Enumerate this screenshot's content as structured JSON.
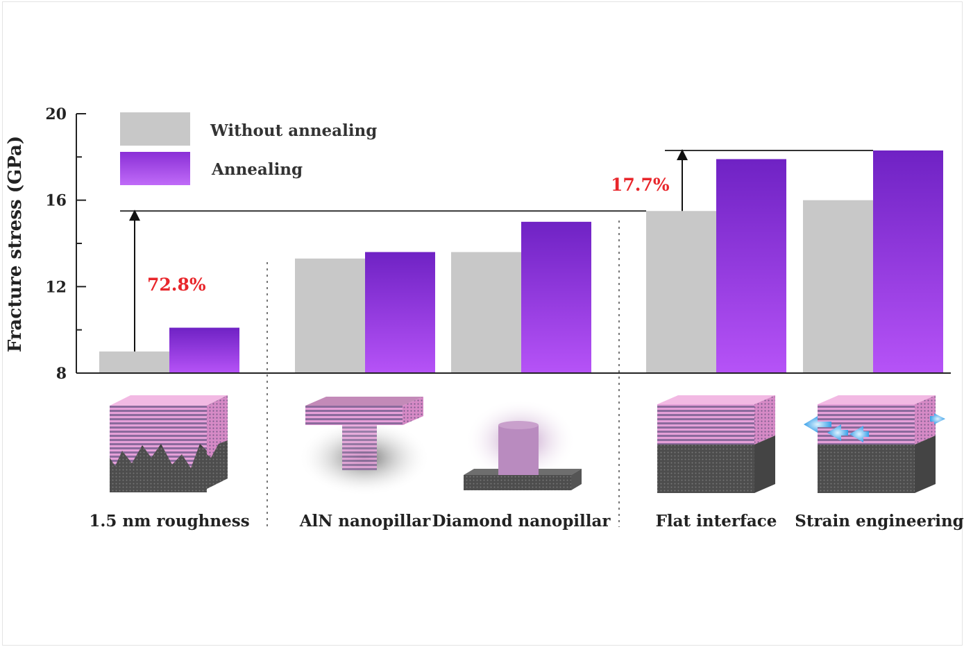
{
  "chart_data": {
    "type": "bar",
    "categories": [
      "1.5 nm roughness",
      "AlN nanopillar",
      "Diamond nanopillar",
      "Flat interface",
      "Strain engineering"
    ],
    "series": [
      {
        "name": "Without annealing",
        "values": [
          9.0,
          13.3,
          13.6,
          15.5,
          16.0
        ],
        "color": "#c8c8c8"
      },
      {
        "name": "Annealing",
        "values": [
          10.1,
          13.6,
          15.0,
          17.9,
          18.3
        ],
        "color": "#9b3fd8"
      }
    ],
    "ylabel": "Fracture stress (GPa)",
    "ylim": [
      8,
      20
    ],
    "yticks": [
      8,
      12,
      16,
      20
    ],
    "legend_position": "top-left",
    "annotations": [
      {
        "text": "72.8%",
        "color": "#e8262b",
        "from_value": 9.0,
        "to_value": 15.5
      },
      {
        "text": "17.7%",
        "color": "#e8262b",
        "from_value": 15.5,
        "to_value": 18.3
      }
    ]
  },
  "colors": {
    "gray_bar": "#c8c8c8",
    "purple_top": "#6f22c4",
    "purple_bottom": "#b653f7",
    "annotation": "#e8262b"
  }
}
